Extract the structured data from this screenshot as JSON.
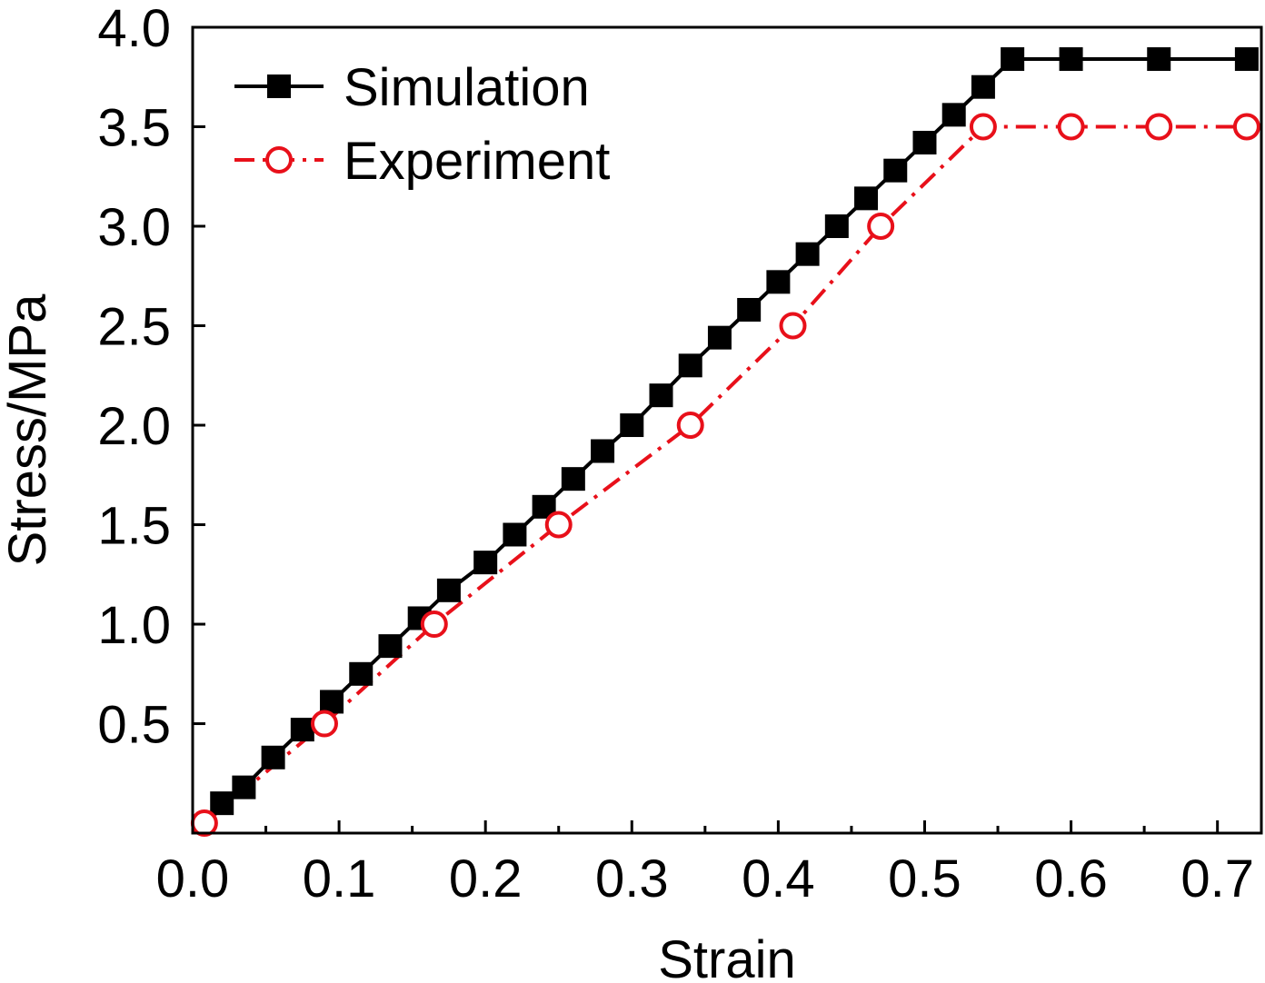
{
  "chart_data": {
    "type": "line",
    "title": "",
    "xlabel": "Strain",
    "ylabel": "Stress/MPa",
    "xlim": [
      0.0,
      0.73
    ],
    "ylim": [
      -0.05,
      4.0
    ],
    "x_ticks": [
      "0.0",
      "0.1",
      "0.2",
      "0.3",
      "0.4",
      "0.5",
      "0.6",
      "0.7"
    ],
    "x_tick_values": [
      0.0,
      0.1,
      0.2,
      0.3,
      0.4,
      0.5,
      0.6,
      0.7
    ],
    "y_ticks": [
      "0.5",
      "1.0",
      "1.5",
      "2.0",
      "2.5",
      "3.0",
      "3.5",
      "4.0"
    ],
    "y_tick_values": [
      0.5,
      1.0,
      1.5,
      2.0,
      2.5,
      3.0,
      3.5,
      4.0
    ],
    "grid": false,
    "legend_position": "top-left",
    "series": [
      {
        "name": "Simulation",
        "color": "#000000",
        "marker": "filled-square",
        "line_style": "solid",
        "x": [
          0.02,
          0.035,
          0.055,
          0.075,
          0.095,
          0.115,
          0.135,
          0.155,
          0.175,
          0.2,
          0.22,
          0.24,
          0.26,
          0.28,
          0.3,
          0.32,
          0.34,
          0.36,
          0.38,
          0.4,
          0.42,
          0.44,
          0.46,
          0.48,
          0.5,
          0.52,
          0.54,
          0.56,
          0.6,
          0.66,
          0.72
        ],
        "y": [
          0.1,
          0.18,
          0.33,
          0.47,
          0.61,
          0.75,
          0.89,
          1.03,
          1.17,
          1.31,
          1.45,
          1.59,
          1.73,
          1.87,
          2.0,
          2.15,
          2.3,
          2.44,
          2.58,
          2.72,
          2.86,
          3.0,
          3.14,
          3.28,
          3.42,
          3.56,
          3.7,
          3.84,
          3.84,
          3.84,
          3.84
        ]
      },
      {
        "name": "Experiment",
        "color": "#e8101a",
        "marker": "open-circle",
        "line_style": "dash-dot",
        "x": [
          0.008,
          0.09,
          0.165,
          0.25,
          0.34,
          0.41,
          0.47,
          0.54,
          0.6,
          0.66,
          0.72
        ],
        "y": [
          0.0,
          0.5,
          1.0,
          1.5,
          2.0,
          2.5,
          3.0,
          3.5,
          3.5,
          3.5,
          3.5
        ]
      }
    ]
  }
}
